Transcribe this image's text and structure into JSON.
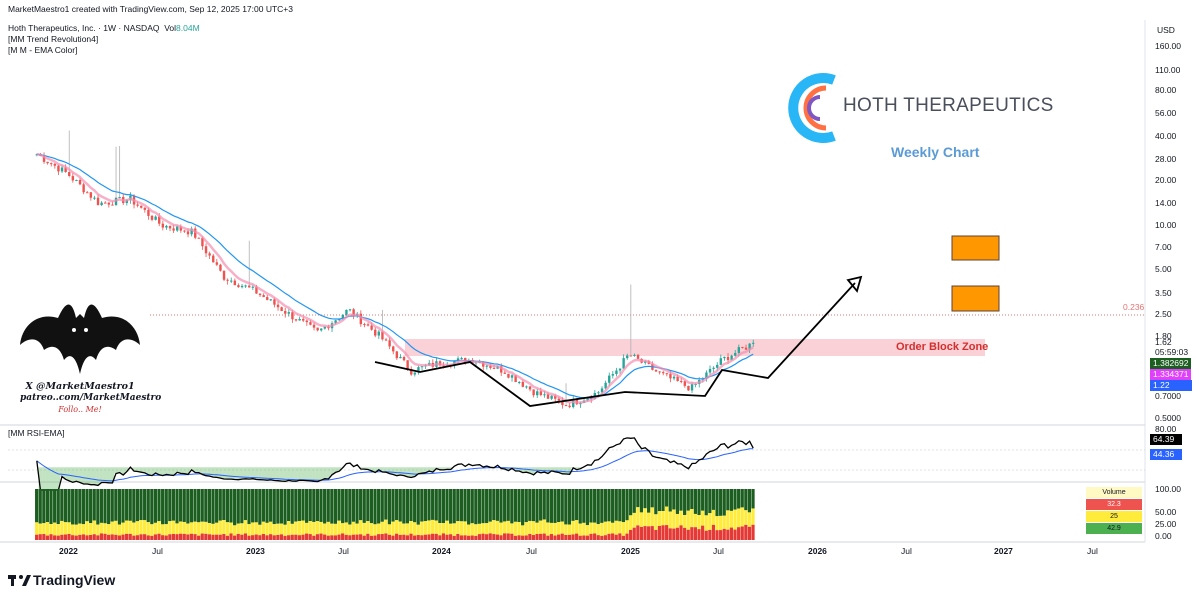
{
  "header": {
    "created_line": "MarketMaestro1 created with TradingView.com, Sep 12, 2025 17:00 UTC+3",
    "symbol_line_name": "Hoth Therapeutics, Inc. · 1W · NASDAQ",
    "symbol_line_vol": "Vol",
    "symbol_line_vol_value": "8.04M",
    "indicator_1": "[MM Trend Revolution4]",
    "indicator_2": "[M M - EMA Color]"
  },
  "price_axis": {
    "currency": "USD",
    "ticks": [
      "160.00",
      "110.00",
      "80.00",
      "56.00",
      "40.00",
      "28.00",
      "20.00",
      "14.00",
      "10.00",
      "7.00",
      "5.00",
      "3.50",
      "2.50",
      "1.80",
      "0.7000",
      "0.5000"
    ],
    "last_price": "1.62",
    "countdown": "05:59:03",
    "tag_green": "1.382692",
    "tag_magenta": "1.334371",
    "tag_blue": "1.22"
  },
  "time_axis": {
    "labels": [
      "2022",
      "Jul",
      "2023",
      "Jul",
      "2024",
      "Jul",
      "2025",
      "Jul",
      "2026",
      "Jul",
      "2027",
      "Jul"
    ]
  },
  "annotations": {
    "company": "HOTH THERAPEUTICS",
    "weekly": "Weekly Chart",
    "fib_label": "0.236",
    "order_block": "Order Block Zone",
    "credit_line1": "X @MarketMaestro1",
    "credit_line2": "patreo..com/MarketMaestro",
    "credit_line3": "Follo.. Me!"
  },
  "rsi_panel": {
    "title": "[MM RSI-EMA]",
    "ticks": [
      "80.00"
    ],
    "rsi_value": "64.39",
    "ema_value": "44.36"
  },
  "volume_panel": {
    "ticks": [
      "100.00",
      "50.00",
      "25.00",
      "0.00"
    ],
    "table_title": "Volume",
    "table_red": "32.3",
    "table_yellow": "25",
    "table_green": "42.9"
  },
  "footer": {
    "brand": "TradingView"
  },
  "colors": {
    "up": "#26a69a",
    "down": "#ef5350",
    "ema_fast": "#f48fb1",
    "ema_slow": "#2196f3",
    "zone": "#f8c9cf",
    "orange": "#ff9800",
    "green_tag": "#1b5e20",
    "magenta_tag": "#e040fb",
    "blue_tag": "#2962ff"
  },
  "chart_data": {
    "type": "candlestick",
    "title": "Hoth Therapeutics, Inc. · 1W · NASDAQ",
    "y_scale": "log",
    "price_series_approx": [
      {
        "x": "2021-11",
        "close": 30
      },
      {
        "x": "2022-01",
        "close": 22
      },
      {
        "x": "2022-03",
        "close": 14
      },
      {
        "x": "2022-05",
        "close": 15
      },
      {
        "x": "2022-07",
        "close": 10
      },
      {
        "x": "2022-09",
        "close": 9
      },
      {
        "x": "2022-11",
        "close": 4.5
      },
      {
        "x": "2023-01",
        "close": 3.6
      },
      {
        "x": "2023-03",
        "close": 2.6
      },
      {
        "x": "2023-05",
        "close": 1.9
      },
      {
        "x": "2023-07",
        "close": 2.7
      },
      {
        "x": "2023-09",
        "close": 1.8
      },
      {
        "x": "2023-11",
        "close": 1.05
      },
      {
        "x": "2024-01",
        "close": 1.2
      },
      {
        "x": "2024-03",
        "close": 1.25
      },
      {
        "x": "2024-05",
        "close": 1.05
      },
      {
        "x": "2024-07",
        "close": 0.75
      },
      {
        "x": "2024-09",
        "close": 0.62
      },
      {
        "x": "2024-11",
        "close": 0.75
      },
      {
        "x": "2025-01",
        "close": 1.35
      },
      {
        "x": "2025-03",
        "close": 1.0
      },
      {
        "x": "2025-05",
        "close": 0.8
      },
      {
        "x": "2025-07",
        "close": 1.25
      },
      {
        "x": "2025-09",
        "close": 1.62
      }
    ]
  }
}
